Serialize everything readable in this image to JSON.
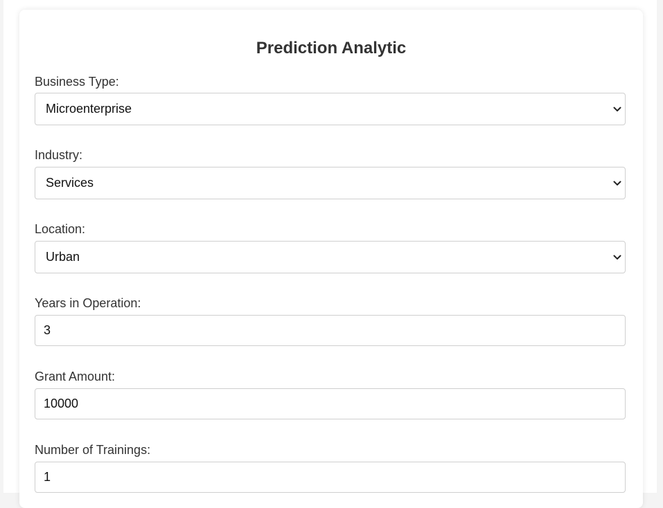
{
  "form": {
    "title": "Prediction Analytic",
    "business_type": {
      "label": "Business Type:",
      "value": "Microenterprise"
    },
    "industry": {
      "label": "Industry:",
      "value": "Services"
    },
    "location": {
      "label": "Location:",
      "value": "Urban"
    },
    "years_in_operation": {
      "label": "Years in Operation:",
      "value": "3"
    },
    "grant_amount": {
      "label": "Grant Amount:",
      "value": "10000"
    },
    "number_of_trainings": {
      "label": "Number of Trainings:",
      "value": "1"
    }
  },
  "icons": {
    "dropdown": "chevron-down-icon"
  },
  "colors": {
    "text": "#333333",
    "border": "#cfcfcf",
    "background": "#ffffff"
  }
}
